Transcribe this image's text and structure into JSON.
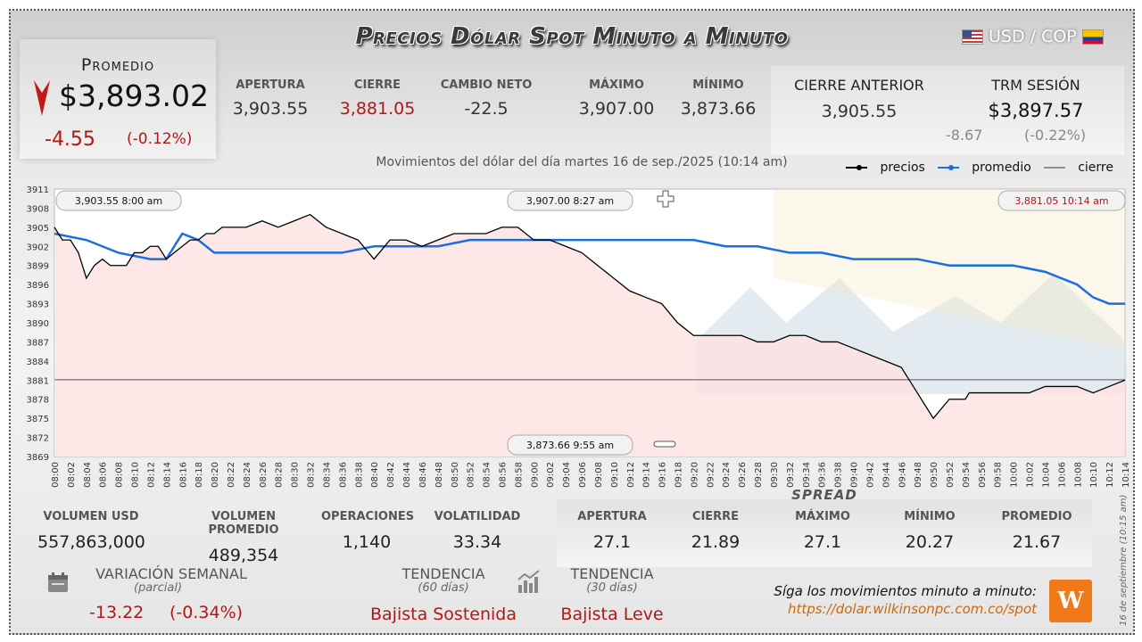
{
  "header": {
    "title": "Precios Dólar Spot Minuto a Minuto",
    "pair": "USD / COP"
  },
  "average": {
    "label": "Promedio",
    "value": "$3,893.02",
    "change": "-4.55",
    "change_pct": "(-0.12%)"
  },
  "stats": [
    {
      "label": "APERTURA",
      "value": "3,903.55",
      "color": "#333333"
    },
    {
      "label": "CIERRE",
      "value": "3,881.05",
      "color": "#b01818"
    },
    {
      "label": "CAMBIO NETO",
      "value": "-22.5",
      "color": "#333333"
    },
    {
      "label": "MÁXIMO",
      "value": "3,907.00",
      "color": "#333333"
    },
    {
      "label": "MÍNIMO",
      "value": "3,873.66",
      "color": "#333333"
    }
  ],
  "previous_close": {
    "label": "CIERRE ANTERIOR",
    "value": "3,905.55"
  },
  "trm": {
    "label": "TRM SESIÓN",
    "value": "$3,897.57",
    "change": "-8.67",
    "change_pct": "(-0.22%)"
  },
  "chart_data": {
    "type": "line",
    "title": "Movimientos del dólar del día martes 16 de sep./2025 (10:14 am)",
    "ylim": [
      3869,
      3911
    ],
    "y_ticks": [
      3911,
      3908,
      3905,
      3902,
      3899,
      3896,
      3893,
      3890,
      3887,
      3884,
      3881,
      3878,
      3875,
      3872,
      3869
    ],
    "x_ticks": [
      "08:00",
      "08:02",
      "08:04",
      "08:06",
      "08:08",
      "08:10",
      "08:12",
      "08:14",
      "08:16",
      "08:18",
      "08:20",
      "08:22",
      "08:24",
      "08:26",
      "08:28",
      "08:30",
      "08:32",
      "08:34",
      "08:36",
      "08:38",
      "08:40",
      "08:42",
      "08:44",
      "08:46",
      "08:48",
      "08:50",
      "08:52",
      "08:54",
      "08:56",
      "08:58",
      "09:00",
      "09:02",
      "09:04",
      "09:06",
      "09:08",
      "09:10",
      "09:12",
      "09:14",
      "09:16",
      "09:18",
      "09:20",
      "09:22",
      "09:24",
      "09:26",
      "09:28",
      "09:30",
      "09:32",
      "09:34",
      "09:36",
      "09:38",
      "09:40",
      "09:42",
      "09:44",
      "09:46",
      "09:48",
      "09:50",
      "09:52",
      "09:54",
      "09:56",
      "09:58",
      "10:00",
      "10:02",
      "10:04",
      "10:06",
      "10:08",
      "10:10",
      "10:12",
      "10:14"
    ],
    "legend": [
      "precios",
      "promedio",
      "cierre"
    ],
    "legend_position": "top-right",
    "series": [
      {
        "name": "precios",
        "color": "#000000",
        "x_minutes": [
          0,
          1,
          2,
          3,
          4,
          5,
          6,
          7,
          8,
          9,
          10,
          11,
          12,
          13,
          14,
          15,
          16,
          17,
          18,
          19,
          20,
          21,
          22,
          24,
          26,
          28,
          30,
          32,
          34,
          36,
          38,
          40,
          42,
          44,
          46,
          48,
          50,
          52,
          54,
          56,
          58,
          60,
          62,
          64,
          66,
          68,
          70,
          72,
          74,
          76,
          78,
          80,
          82,
          84,
          86,
          88,
          90,
          92,
          94,
          96,
          98,
          100,
          102,
          104,
          106,
          108,
          110,
          112,
          114,
          114.5,
          116,
          118,
          120,
          122,
          124,
          126,
          128,
          130,
          132,
          134
        ],
        "values": [
          3905,
          3903,
          3903,
          3901,
          3897,
          3899,
          3900,
          3899,
          3899,
          3899,
          3901,
          3901,
          3902,
          3902,
          3900,
          3901,
          3902,
          3903,
          3903,
          3904,
          3904,
          3905,
          3905,
          3905,
          3906,
          3905,
          3906,
          3907,
          3905,
          3904,
          3903,
          3900,
          3903,
          3903,
          3902,
          3903,
          3904,
          3904,
          3904,
          3905,
          3905,
          3903,
          3903,
          3902,
          3901,
          3899,
          3897,
          3895,
          3894,
          3893,
          3890,
          3888,
          3888,
          3888,
          3888,
          3887,
          3887,
          3888,
          3888,
          3887,
          3887,
          3886,
          3885,
          3884,
          3883,
          3879,
          3875,
          3878,
          3878,
          3879,
          3879,
          3879,
          3879,
          3879,
          3880,
          3880,
          3880,
          3879,
          3880,
          3881
        ]
      },
      {
        "name": "promedio",
        "color": "#1a6fe0",
        "x_minutes": [
          0,
          4,
          8,
          12,
          14,
          16,
          18,
          20,
          24,
          28,
          32,
          36,
          40,
          44,
          48,
          52,
          56,
          60,
          64,
          68,
          72,
          76,
          80,
          84,
          88,
          92,
          96,
          100,
          104,
          108,
          112,
          116,
          120,
          124,
          128,
          130,
          132,
          134
        ],
        "values": [
          3904,
          3903,
          3901,
          3900,
          3900,
          3904,
          3903,
          3901,
          3901,
          3901,
          3901,
          3901,
          3902,
          3902,
          3902,
          3903,
          3903,
          3903,
          3903,
          3903,
          3903,
          3903,
          3903,
          3902,
          3902,
          3901,
          3901,
          3900,
          3900,
          3900,
          3899,
          3899,
          3899,
          3898,
          3896,
          3894,
          3893,
          3893
        ]
      },
      {
        "name": "cierre",
        "color": "#555555",
        "values": [
          3881.05
        ]
      }
    ],
    "annotations": [
      {
        "label": "3,903.55   8:00 am"
      },
      {
        "label": "3,907.00   8:27 am"
      },
      {
        "label": "3,881.05   10:14 am"
      },
      {
        "label": "3,873.66   9:55 am"
      }
    ]
  },
  "volume": [
    {
      "label": "VOLUMEN USD",
      "value": "557,863,000"
    },
    {
      "label": "VOLUMEN PROMEDIO",
      "value": "489,354"
    },
    {
      "label": "OPERACIONES",
      "value": "1,140"
    },
    {
      "label": "VOLATILIDAD",
      "value": "33.34"
    }
  ],
  "spread": {
    "title": "SPREAD",
    "items": [
      {
        "label": "APERTURA",
        "value": "27.1"
      },
      {
        "label": "CIERRE",
        "value": "21.89"
      },
      {
        "label": "MÁXIMO",
        "value": "27.1"
      },
      {
        "label": "MÍNIMO",
        "value": "20.27"
      },
      {
        "label": "PROMEDIO",
        "value": "21.67"
      }
    ]
  },
  "weekly": {
    "label": "VARIACIÓN SEMANAL",
    "sub": "(parcial)",
    "value": "-13.22",
    "pct": "(-0.34%)"
  },
  "trend60": {
    "label": "TENDENCIA",
    "sub": "(60 días)",
    "value": "Bajista Sostenida"
  },
  "trend30": {
    "label": "TENDENCIA",
    "sub": "(30 días)",
    "value": "Bajista Leve"
  },
  "footer": {
    "follow": "Síga los movimientos minuto a minuto:",
    "url": "https://dolar.wilkinsonpc.com.co/spot",
    "side_date": "16 de septiembre (10:15 am)",
    "logo": "W"
  },
  "icons": {
    "calendar": "calendar-icon",
    "trend": "bar-chart-icon",
    "arrow": "down-arrow-icon"
  }
}
